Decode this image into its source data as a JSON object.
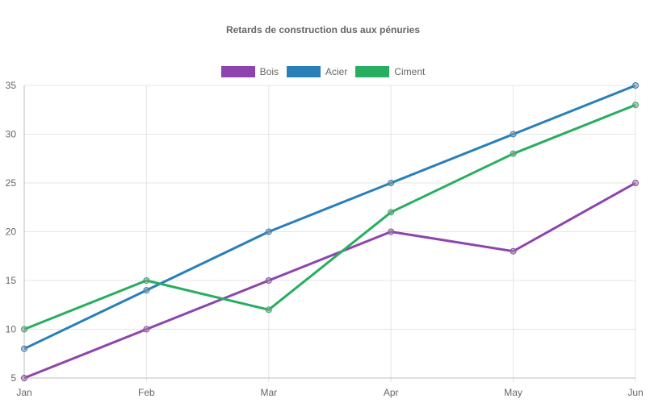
{
  "chart_data": {
    "type": "line",
    "title": "Retards de construction dus aux pénuries",
    "categories": [
      "Jan",
      "Feb",
      "Mar",
      "Apr",
      "May",
      "Jun"
    ],
    "series": [
      {
        "name": "Bois",
        "color": "#8e44ad",
        "values": [
          5,
          10,
          15,
          20,
          18,
          25
        ]
      },
      {
        "name": "Acier",
        "color": "#2980b9",
        "values": [
          8,
          14,
          20,
          25,
          30,
          35
        ]
      },
      {
        "name": "Ciment",
        "color": "#27ae60",
        "values": [
          10,
          15,
          12,
          22,
          28,
          33
        ]
      }
    ],
    "xlabel": "",
    "ylabel": "",
    "ylim": [
      5,
      35
    ],
    "yticks": [
      5,
      10,
      15,
      20,
      25,
      30,
      35
    ],
    "grid": true,
    "legend_position": "top"
  }
}
